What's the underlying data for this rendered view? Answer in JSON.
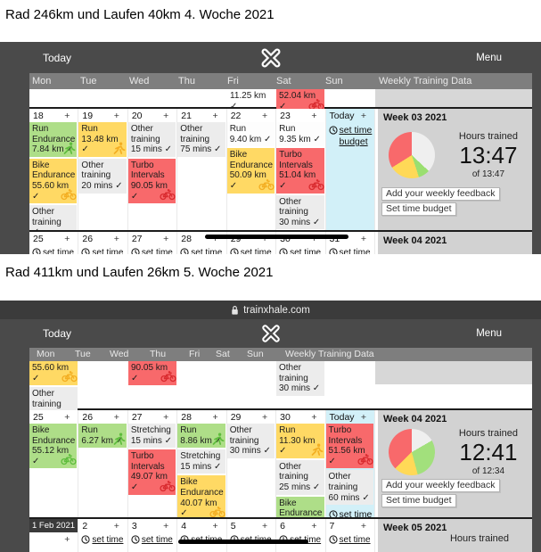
{
  "captions": {
    "first": "Rad 246km und Laufen 40km 4. Woche 2021",
    "second": "Rad 411km und Laufen 26km 5. Woche 2021"
  },
  "browser": {
    "url": "trainxhale.com"
  },
  "toolbar": {
    "today": "Today",
    "menu": "Menu"
  },
  "day_headers": [
    "Mon",
    "Tue",
    "Wed",
    "Thu",
    "Fri",
    "Sat",
    "Sun"
  ],
  "weekly_header": "Weekly Training Data",
  "ui": {
    "plus": "+",
    "today_label": "Today",
    "set_time_budget": "set time budget",
    "set_time": "set time",
    "hours_trained": "Hours trained",
    "add_feedback": "Add your weekly feedback",
    "set_budget": "Set time budget"
  },
  "colors": {
    "frame": "#4a4a4a",
    "titlebar": "#3b3b3b",
    "day_header_bar": "#7e7e7e",
    "green": "#aede88",
    "yellow": "#ffd964",
    "red": "#f8696b",
    "gray": "#ececec",
    "today_blue": "#d2f0f8",
    "panel": "#d2d2d2",
    "annotation": "#000000"
  },
  "shot1": {
    "partial": {
      "fri": [
        {
          "lines": [
            "11.25 km ✓"
          ],
          "color": "plain"
        }
      ],
      "sat": [
        {
          "lines": [
            "52.04 km ✓"
          ],
          "color": "red",
          "icon": "bike"
        }
      ]
    },
    "week": {
      "days": [
        {
          "num": "18",
          "cards": [
            {
              "lines": [
                "Run",
                "Endurance",
                "7.84 km ✓"
              ],
              "color": "green",
              "icon": "runner"
            },
            {
              "lines": [
                "Bike",
                "Endurance",
                "55.60 km ✓"
              ],
              "color": "yellow",
              "icon": "bike"
            },
            {
              "lines": [
                "Other",
                "training",
                "✓"
              ],
              "color": "gray"
            }
          ]
        },
        {
          "num": "19",
          "cards": [
            {
              "lines": [
                "Run",
                "13.48 km ✓"
              ],
              "color": "yellow",
              "icon": "runner"
            },
            {
              "lines": [
                "Other",
                "training",
                "20 mins ✓"
              ],
              "color": "gray"
            }
          ]
        },
        {
          "num": "20",
          "cards": [
            {
              "lines": [
                "Other",
                "training",
                "15 mins ✓"
              ],
              "color": "gray"
            },
            {
              "lines": [
                "Turbo",
                "Intervals",
                "90.05 km ✓"
              ],
              "color": "red",
              "icon": "bike"
            }
          ]
        },
        {
          "num": "21",
          "cards": [
            {
              "lines": [
                "Other",
                "training",
                "75 mins ✓"
              ],
              "color": "gray"
            }
          ]
        },
        {
          "num": "22",
          "cards": [
            {
              "lines": [
                "Run",
                "9.40 km ✓"
              ],
              "color": "white"
            },
            {
              "lines": [
                "Bike",
                "Endurance",
                "50.09 km ✓"
              ],
              "color": "yellow",
              "icon": "bike"
            }
          ]
        },
        {
          "num": "23",
          "cards": [
            {
              "lines": [
                "Run",
                "9.35 km ✓"
              ],
              "color": "white"
            },
            {
              "lines": [
                "Turbo",
                "Intervals",
                "51.04 km ✓"
              ],
              "color": "red",
              "icon": "bike"
            },
            {
              "lines": [
                "Other",
                "training",
                "30 mins ✓"
              ],
              "color": "gray"
            }
          ]
        }
      ],
      "panel": {
        "title": "Week 03 2021",
        "hours": "13:47",
        "of": "of 13:47",
        "pie": [
          {
            "color": "#efefef",
            "deg": 133
          },
          {
            "color": "#9adf70",
            "deg": 29
          },
          {
            "color": "#ffd957",
            "deg": 76
          },
          {
            "color": "#f8696b",
            "deg": 122
          }
        ]
      }
    },
    "next_row": {
      "days": [
        "25",
        "26",
        "27",
        "28",
        "29",
        "30",
        "31"
      ],
      "panel_title": "Week 04 2021"
    }
  },
  "shot2": {
    "partial": {
      "mon": [
        {
          "lines": [
            "55.60 km ✓"
          ],
          "color": "yellow",
          "icon": "bike"
        },
        {
          "lines": [
            "Other",
            "training",
            "✓"
          ],
          "color": "gray"
        }
      ],
      "wed": [
        {
          "lines": [
            "90.05 km ✓"
          ],
          "color": "red",
          "icon": "bike"
        }
      ],
      "sat": [
        {
          "lines": [
            "Other",
            "training",
            "30 mins ✓"
          ],
          "color": "gray"
        }
      ]
    },
    "week": {
      "days": [
        {
          "num": "25",
          "cards": [
            {
              "lines": [
                "Bike",
                "Endurance",
                "55.12 km ✓"
              ],
              "color": "green",
              "icon": "bike"
            }
          ]
        },
        {
          "num": "26",
          "cards": [
            {
              "lines": [
                "Run",
                "6.27 km ✓"
              ],
              "color": "green",
              "icon": "runner"
            }
          ]
        },
        {
          "num": "27",
          "cards": [
            {
              "lines": [
                "Stretching",
                "15 mins ✓"
              ],
              "color": "gray"
            },
            {
              "lines": [
                "Turbo",
                "Intervals",
                "49.07 km ✓"
              ],
              "color": "red",
              "icon": "bike"
            }
          ]
        },
        {
          "num": "28",
          "cards": [
            {
              "lines": [
                "Run",
                "8.86 km ✓"
              ],
              "color": "green",
              "icon": "runner"
            },
            {
              "lines": [
                "Stretching",
                "15 mins ✓"
              ],
              "color": "gray"
            },
            {
              "lines": [
                "Bike",
                "Endurance",
                "40.07 km ✓"
              ],
              "color": "yellow",
              "icon": "bike"
            }
          ]
        },
        {
          "num": "29",
          "cards": [
            {
              "lines": [
                "Other",
                "training",
                "30 mins ✓"
              ],
              "color": "gray"
            }
          ]
        },
        {
          "num": "30",
          "cards": [
            {
              "lines": [
                "Run",
                "11.30 km ✓"
              ],
              "color": "yellow",
              "icon": "runner"
            },
            {
              "lines": [
                "Other",
                "training",
                "25 mins ✓"
              ],
              "color": "gray"
            },
            {
              "lines": [
                "Bike",
                "Endurance",
                "70.43 km ✓"
              ],
              "color": "green",
              "icon": "bike"
            }
          ]
        }
      ],
      "today_cards": [
        {
          "lines": [
            "Turbo",
            "Intervals",
            "51.56 km ✓"
          ],
          "color": "red",
          "icon": "bike"
        },
        {
          "lines": [
            "Other",
            "training",
            "60 mins ✓"
          ],
          "color": "gray"
        }
      ],
      "panel": {
        "title": "Week 04 2021",
        "hours": "12:41",
        "of": "of 12:34",
        "pie": [
          {
            "color": "#efefef",
            "deg": 60
          },
          {
            "color": "#a2e07c",
            "deg": 105
          },
          {
            "color": "#ffd957",
            "deg": 60
          },
          {
            "color": "#f8696b",
            "deg": 135
          }
        ]
      }
    },
    "bottom_row": {
      "date": "1 Feb 2021",
      "days": [
        "2",
        "3",
        "4",
        "5",
        "6",
        "7"
      ],
      "panel_title": "Week 05 2021"
    }
  }
}
